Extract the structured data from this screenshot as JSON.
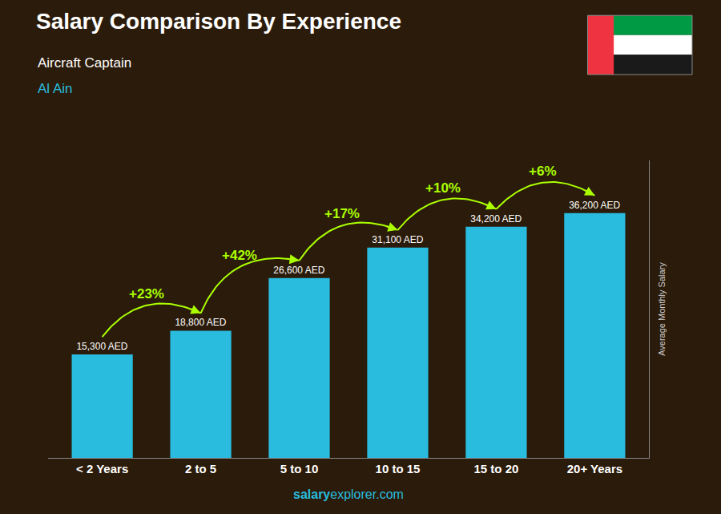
{
  "chart_data": {
    "type": "bar",
    "title": "Salary Comparison By Experience",
    "subtitle": [
      "Aircraft Captain",
      "Al Ain"
    ],
    "categories": [
      "< 2 Years",
      "2 to 5",
      "5 to 10",
      "10 to 15",
      "15 to 20",
      "20+ Years"
    ],
    "values": [
      15300,
      18800,
      26600,
      31100,
      34200,
      36200
    ],
    "value_labels": [
      "15,300 AED",
      "18,800 AED",
      "26,600 AED",
      "31,100 AED",
      "34,200 AED",
      "36,200 AED"
    ],
    "data_labels": true,
    "color": "#29BCDF",
    "ylabel": "Average Monthly Salary",
    "annotations": [
      "+23%",
      "+42%",
      "+17%",
      "+10%",
      "+6%"
    ],
    "footer": [
      "salary",
      "explorer.com"
    ],
    "ylim": [
      0,
      44000
    ],
    "yticks": [],
    "grid": false,
    "tick_labels": "x"
  }
}
